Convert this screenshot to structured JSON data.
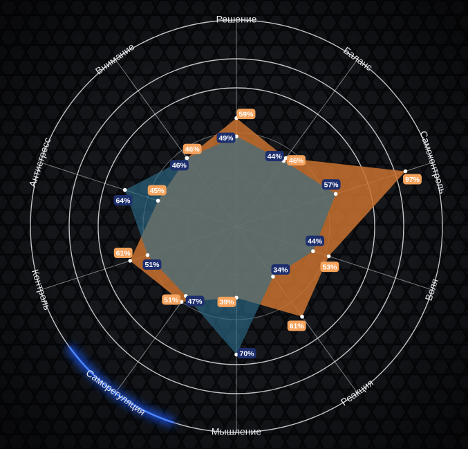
{
  "chart_data": {
    "type": "radar",
    "categories": [
      "Решение",
      "Баланс",
      "Самоконтроль",
      "Воля",
      "Реакция",
      "Мышление",
      "Саморегуляция",
      "Контроль",
      "Антистресс",
      "Внимание"
    ],
    "series": [
      {
        "values": [
          59,
          46,
          97,
          53,
          61,
          39,
          51,
          61,
          45,
          46
        ],
        "color": "#c9722f",
        "label_color": "#f4a25c"
      },
      {
        "values": [
          49,
          44,
          57,
          44,
          34,
          70,
          47,
          51,
          64,
          46
        ],
        "color": "#2e6f8e",
        "label_color": "#1e2f6e"
      }
    ],
    "value_suffix": "%",
    "highlighted_category": "Саморегуляция",
    "highlight_color": "#1f5cff",
    "grid": "circular",
    "background_pattern": "hexagon"
  }
}
